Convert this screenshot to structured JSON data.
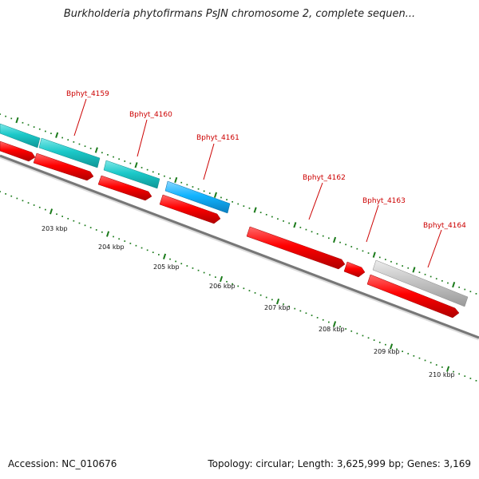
{
  "title": "Burkholderia phytofirmans PsJN chromosome 2, complete sequen...",
  "footer": {
    "accession": "Accession: NC_010676",
    "summary": "Topology: circular; Length: 3,625,999 bp; Genes: 3,169"
  },
  "colors": {
    "cds": "#ff0000",
    "cyan_feature": "#1cc9c9",
    "blue_feature": "#12b4ff",
    "grey_feature": "#c4c4c4",
    "backbone": "#777777",
    "tick": "#1a7a1a",
    "label": "#cc0000"
  },
  "axis": {
    "unit": "kbp",
    "ticks": [
      203,
      204,
      205,
      206,
      207,
      208,
      209,
      210
    ]
  },
  "genes": [
    {
      "id": "Bphyt_4159"
    },
    {
      "id": "Bphyt_4160"
    },
    {
      "id": "Bphyt_4161"
    },
    {
      "id": "Bphyt_4162"
    },
    {
      "id": "Bphyt_4163"
    },
    {
      "id": "Bphyt_4164"
    }
  ]
}
